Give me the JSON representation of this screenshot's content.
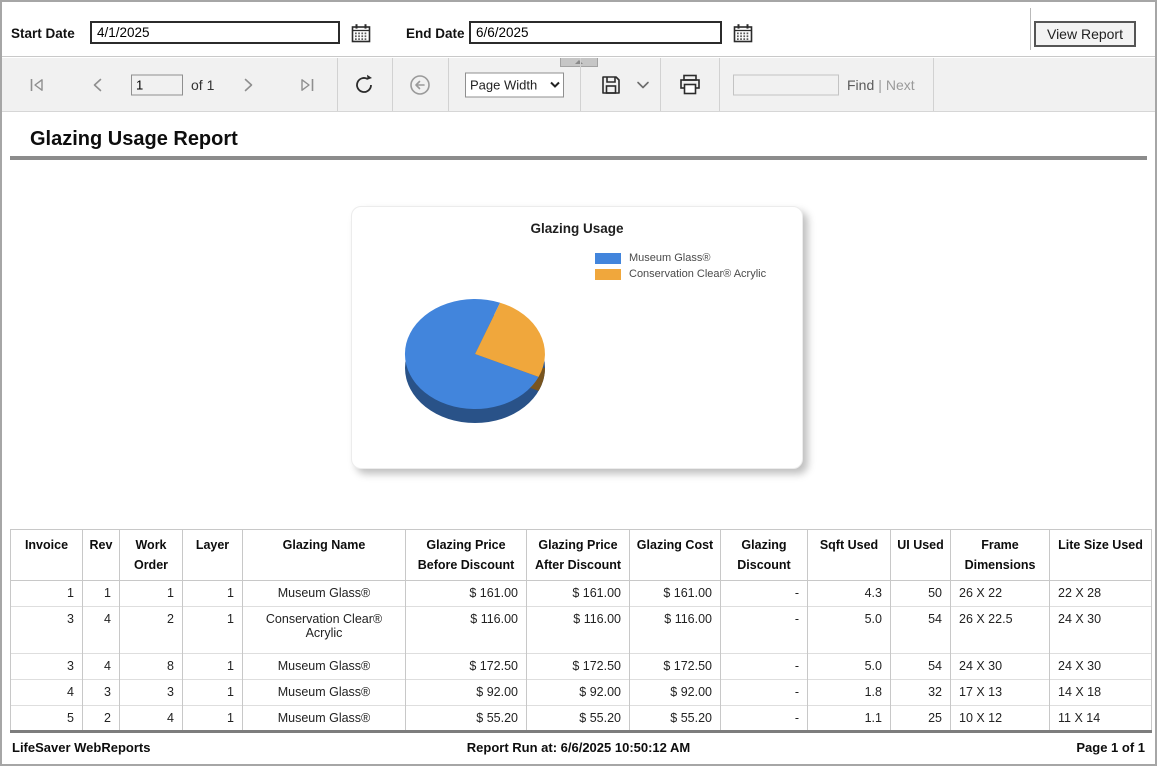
{
  "param_bar": {
    "start_date_label": "Start Date",
    "start_date_value": "4/1/2025",
    "end_date_label": "End Date",
    "end_date_value": "6/6/2025",
    "view_report_label": "View Report"
  },
  "toolbar": {
    "page_value": "1",
    "of_label": "of 1",
    "zoom_value": "Page Width",
    "find_value": "",
    "find_label": "Find",
    "separator": "|",
    "next_label": "Next"
  },
  "report": {
    "title": "Glazing Usage Report",
    "footer_left": "LifeSaver WebReports",
    "footer_center": "Report Run at: 6/6/2025 10:50:12 AM",
    "footer_right": "Page 1 of 1"
  },
  "chart_data": {
    "type": "pie",
    "title": "Glazing Usage",
    "legend_position": "right",
    "start_angle_deg": 21,
    "slices": [
      {
        "label": "Museum Glass®",
        "value": 74,
        "color": "#4285DC"
      },
      {
        "label": "Conservation Clear® Acrylic",
        "value": 26,
        "color": "#F0A73C"
      }
    ]
  },
  "table": {
    "columns": [
      "Invoice",
      "Rev",
      "Work Order",
      "Layer",
      "Glazing Name",
      "Glazing Price Before Discount",
      "Glazing Price After Discount",
      "Glazing Cost",
      "Glazing Discount",
      "Sqft Used",
      "UI Used",
      "Frame Dimensions",
      "Lite Size Used"
    ],
    "rows": [
      [
        "1",
        "1",
        "1",
        "1",
        "Museum Glass®",
        "$ 161.00",
        "$ 161.00",
        "$ 161.00",
        "-",
        "4.3",
        "50",
        "26 X 22",
        "22 X 28"
      ],
      [
        "3",
        "4",
        "2",
        "1",
        "Conservation Clear® Acrylic",
        "$ 116.00",
        "$ 116.00",
        "$ 116.00",
        "-",
        "5.0",
        "54",
        "26 X 22.5",
        "24 X 30"
      ],
      [
        "3",
        "4",
        "8",
        "1",
        "Museum Glass®",
        "$ 172.50",
        "$ 172.50",
        "$ 172.50",
        "-",
        "5.0",
        "54",
        "24 X 30",
        "24 X 30"
      ],
      [
        "4",
        "3",
        "3",
        "1",
        "Museum Glass®",
        "$ 92.00",
        "$ 92.00",
        "$ 92.00",
        "-",
        "1.8",
        "32",
        "17 X 13",
        "14 X 18"
      ],
      [
        "5",
        "2",
        "4",
        "1",
        "Museum Glass®",
        "$ 55.20",
        "$ 55.20",
        "$ 55.20",
        "-",
        "1.1",
        "25",
        "10 X 12",
        "11 X 14"
      ]
    ]
  },
  "icons": [
    "calendar-icon",
    "first-page-icon",
    "previous-page-icon",
    "next-page-icon",
    "last-page-icon",
    "refresh-icon",
    "back-icon",
    "save-export-icon",
    "chevron-down-icon",
    "print-icon",
    "collapse-toolbar-handle"
  ]
}
